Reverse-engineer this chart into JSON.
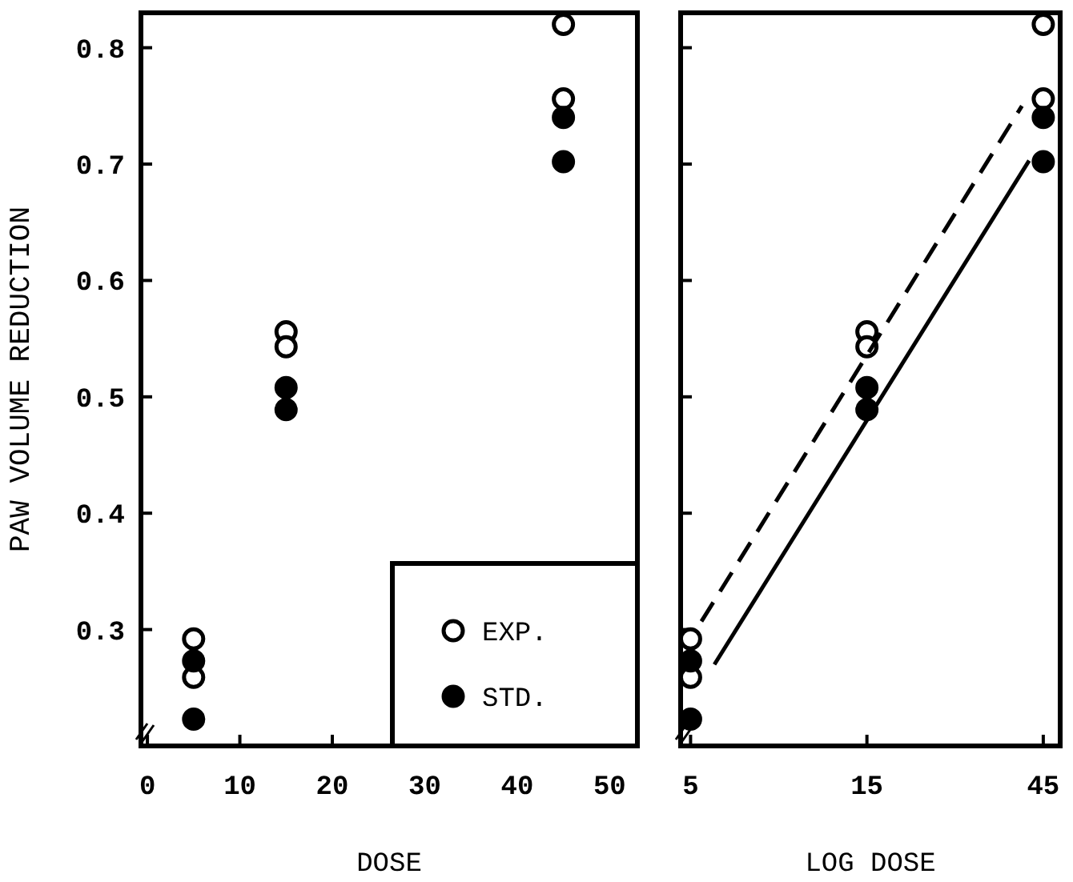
{
  "chart_data": [
    {
      "type": "scatter",
      "xlabel": "DOSE",
      "ylabel": "PAW VOLUME REDUCTION",
      "xlim": [
        -0.7,
        53
      ],
      "xticks": [
        0,
        10,
        20,
        30,
        40,
        50
      ],
      "ylim": [
        0.2,
        0.83
      ],
      "yticks": [
        0.3,
        0.4,
        0.5,
        0.6,
        0.7,
        0.8
      ],
      "marker": "circle",
      "legend": "bottom right",
      "series": [
        {
          "name": "EXP.",
          "color": "#ffffff",
          "x": [
            5,
            5,
            15,
            15,
            45,
            45
          ],
          "values": [
            0.292,
            0.259,
            0.556,
            0.543,
            0.82,
            0.756
          ]
        },
        {
          "name": "STD.",
          "color": "#000000",
          "x": [
            5,
            5,
            15,
            15,
            45,
            45
          ],
          "values": [
            0.273,
            0.223,
            0.508,
            0.489,
            0.74,
            0.702
          ]
        }
      ]
    },
    {
      "type": "scatter",
      "xlabel": "LOG DOSE",
      "log": "x",
      "xlim": [
        4.7,
        50
      ],
      "xticks": [
        5,
        15,
        45
      ],
      "ylim": [
        0.2,
        0.83
      ],
      "yticks": [
        0.3,
        0.4,
        0.5,
        0.6,
        0.7,
        0.8
      ],
      "tick_labels": "x",
      "marker": "circle",
      "series": [
        {
          "color": "#ffffff",
          "x": [
            5,
            5,
            15,
            15,
            45,
            45
          ],
          "values": [
            0.292,
            0.259,
            0.556,
            0.543,
            0.82,
            0.756
          ]
        },
        {
          "color": "#000000",
          "x": [
            5,
            5,
            15,
            15,
            45,
            45
          ],
          "values": [
            0.273,
            0.223,
            0.508,
            0.489,
            0.74,
            0.702
          ]
        },
        {
          "type": "line",
          "marker": "none",
          "color": "#000000",
          "line_style": "dashed",
          "x": [
            5.35,
            39.4
          ],
          "values": [
            0.307,
            0.75
          ]
        },
        {
          "type": "line",
          "marker": "none",
          "color": "#000000",
          "line_style": "solid",
          "x": [
            5.8,
            41.2
          ],
          "values": [
            0.27,
            0.703
          ]
        }
      ]
    }
  ]
}
